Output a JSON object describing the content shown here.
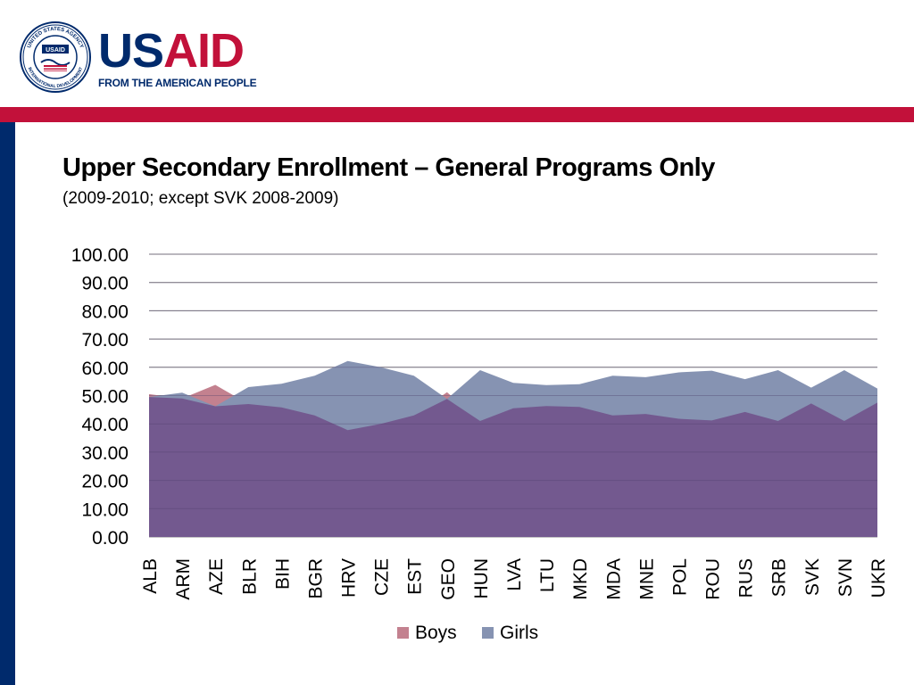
{
  "logo": {
    "word_part1": "US",
    "word_part2": "AID",
    "tagline": "FROM THE AMERICAN PEOPLE",
    "seal_top": "UNITED STATES AGENCY",
    "seal_bottom": "INTERNATIONAL DEVELOPMENT",
    "seal_center": "USAID",
    "colors": {
      "navy": "#002a6c",
      "red": "#c2113a"
    }
  },
  "slide": {
    "title": "Upper Secondary Enrollment – General Programs Only",
    "subtitle": "(2009-2010; except SVK 2008-2009)"
  },
  "chart_data": {
    "type": "area",
    "categories": [
      "ALB",
      "ARM",
      "AZE",
      "BLR",
      "BIH",
      "BGR",
      "HRV",
      "CZE",
      "EST",
      "GEO",
      "HUN",
      "LVA",
      "LTU",
      "MKD",
      "MDA",
      "MNE",
      "POL",
      "ROU",
      "RUS",
      "SRB",
      "SVK",
      "SVN",
      "UKR"
    ],
    "series": [
      {
        "name": "Boys",
        "color": "#c3818f",
        "values": [
          50.5,
          49.0,
          53.8,
          47.0,
          45.8,
          43.0,
          37.8,
          40.0,
          43.0,
          51.2,
          41.0,
          45.5,
          46.3,
          46.0,
          43.0,
          43.5,
          41.8,
          41.2,
          44.2,
          41.0,
          47.2,
          41.0,
          47.5
        ]
      },
      {
        "name": "Girls",
        "color": "#8693b2",
        "values": [
          49.5,
          51.0,
          46.2,
          53.0,
          54.2,
          57.0,
          62.2,
          60.0,
          57.0,
          48.8,
          59.0,
          54.5,
          53.7,
          54.0,
          57.0,
          56.5,
          58.2,
          58.8,
          55.8,
          59.0,
          52.8,
          59.0,
          52.5
        ]
      }
    ],
    "overlap_color": "#73598f",
    "ylim": [
      0,
      100
    ],
    "yticks": [
      "0.00",
      "10.00",
      "20.00",
      "30.00",
      "40.00",
      "50.00",
      "60.00",
      "70.00",
      "80.00",
      "90.00",
      "100.00"
    ],
    "grid": true,
    "legend": "bottom"
  }
}
